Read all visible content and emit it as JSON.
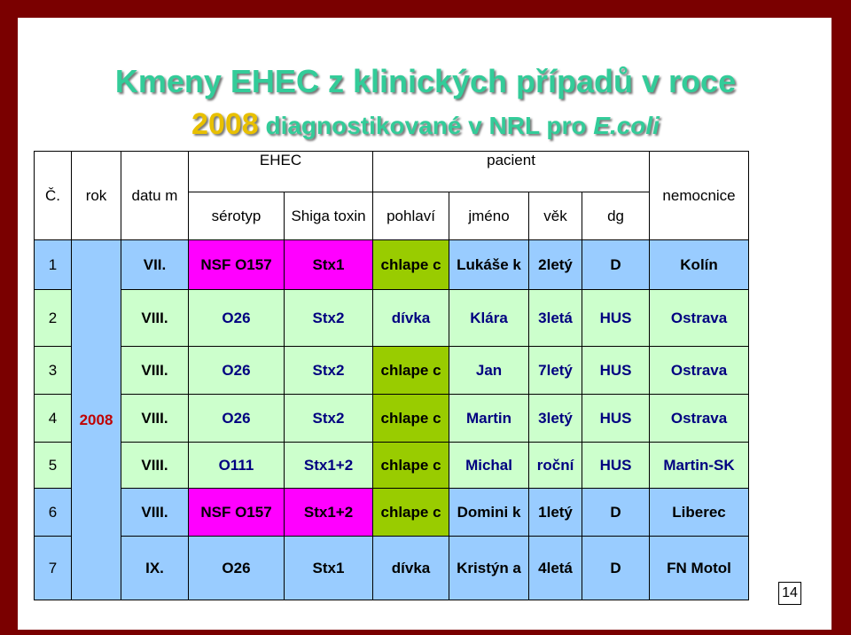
{
  "title": "Kmeny EHEC z klinických případů v roce",
  "subtitle": {
    "year": "2008",
    "text": "diagnostikované v NRL pro",
    "italic": "E.coli"
  },
  "header": {
    "c": "Č.",
    "rok": "rok",
    "datum": "datu m",
    "ehec": "EHEC",
    "serotyp": "sérotyp",
    "shiga": "Shiga toxin",
    "pacient": "pacient",
    "pohlavi": "pohlaví",
    "jmeno": "jméno",
    "vek": "věk",
    "dg": "dg",
    "nemocnice": "nemocnice"
  },
  "year_cell": "2008",
  "rows": [
    {
      "no": "1",
      "datum": "VII.",
      "serotyp": "NSF O157",
      "toxin": "Stx1",
      "pohlavi": "chlape c",
      "jmeno": "Lukáše k",
      "vek": "2letý",
      "dg": "D",
      "nemocnice": "Kolín"
    },
    {
      "no": "2",
      "datum": "VIII.",
      "serotyp": "O26",
      "toxin": "Stx2",
      "pohlavi": "dívka",
      "jmeno": "Klára",
      "vek": "3letá",
      "dg": "HUS",
      "nemocnice": "Ostrava"
    },
    {
      "no": "3",
      "datum": "VIII.",
      "serotyp": "O26",
      "toxin": "Stx2",
      "pohlavi": "chlape c",
      "jmeno": "Jan",
      "vek": "7letý",
      "dg": "HUS",
      "nemocnice": "Ostrava"
    },
    {
      "no": "4",
      "datum": "VIII.",
      "serotyp": "O26",
      "toxin": "Stx2",
      "pohlavi": "chlape c",
      "jmeno": "Martin",
      "vek": "3letý",
      "dg": "HUS",
      "nemocnice": "Ostrava"
    },
    {
      "no": "5",
      "datum": "VIII.",
      "serotyp": "O111",
      "toxin": "Stx1+2",
      "pohlavi": "chlape c",
      "jmeno": "Michal",
      "vek": "roční",
      "dg": "HUS",
      "nemocnice": "Martin-SK"
    },
    {
      "no": "6",
      "datum": "VIII.",
      "serotyp": "NSF O157",
      "toxin": "Stx1+2",
      "pohlavi": "chlape c",
      "jmeno": "Domini k",
      "vek": "1letý",
      "dg": "D",
      "nemocnice": "Liberec"
    },
    {
      "no": "7",
      "datum": "IX.",
      "serotyp": "O26",
      "toxin": "Stx1",
      "pohlavi": "dívka",
      "jmeno": "Kristýn a",
      "vek": "4letá",
      "dg": "D",
      "nemocnice": "FN Motol"
    }
  ],
  "page_number": "14"
}
